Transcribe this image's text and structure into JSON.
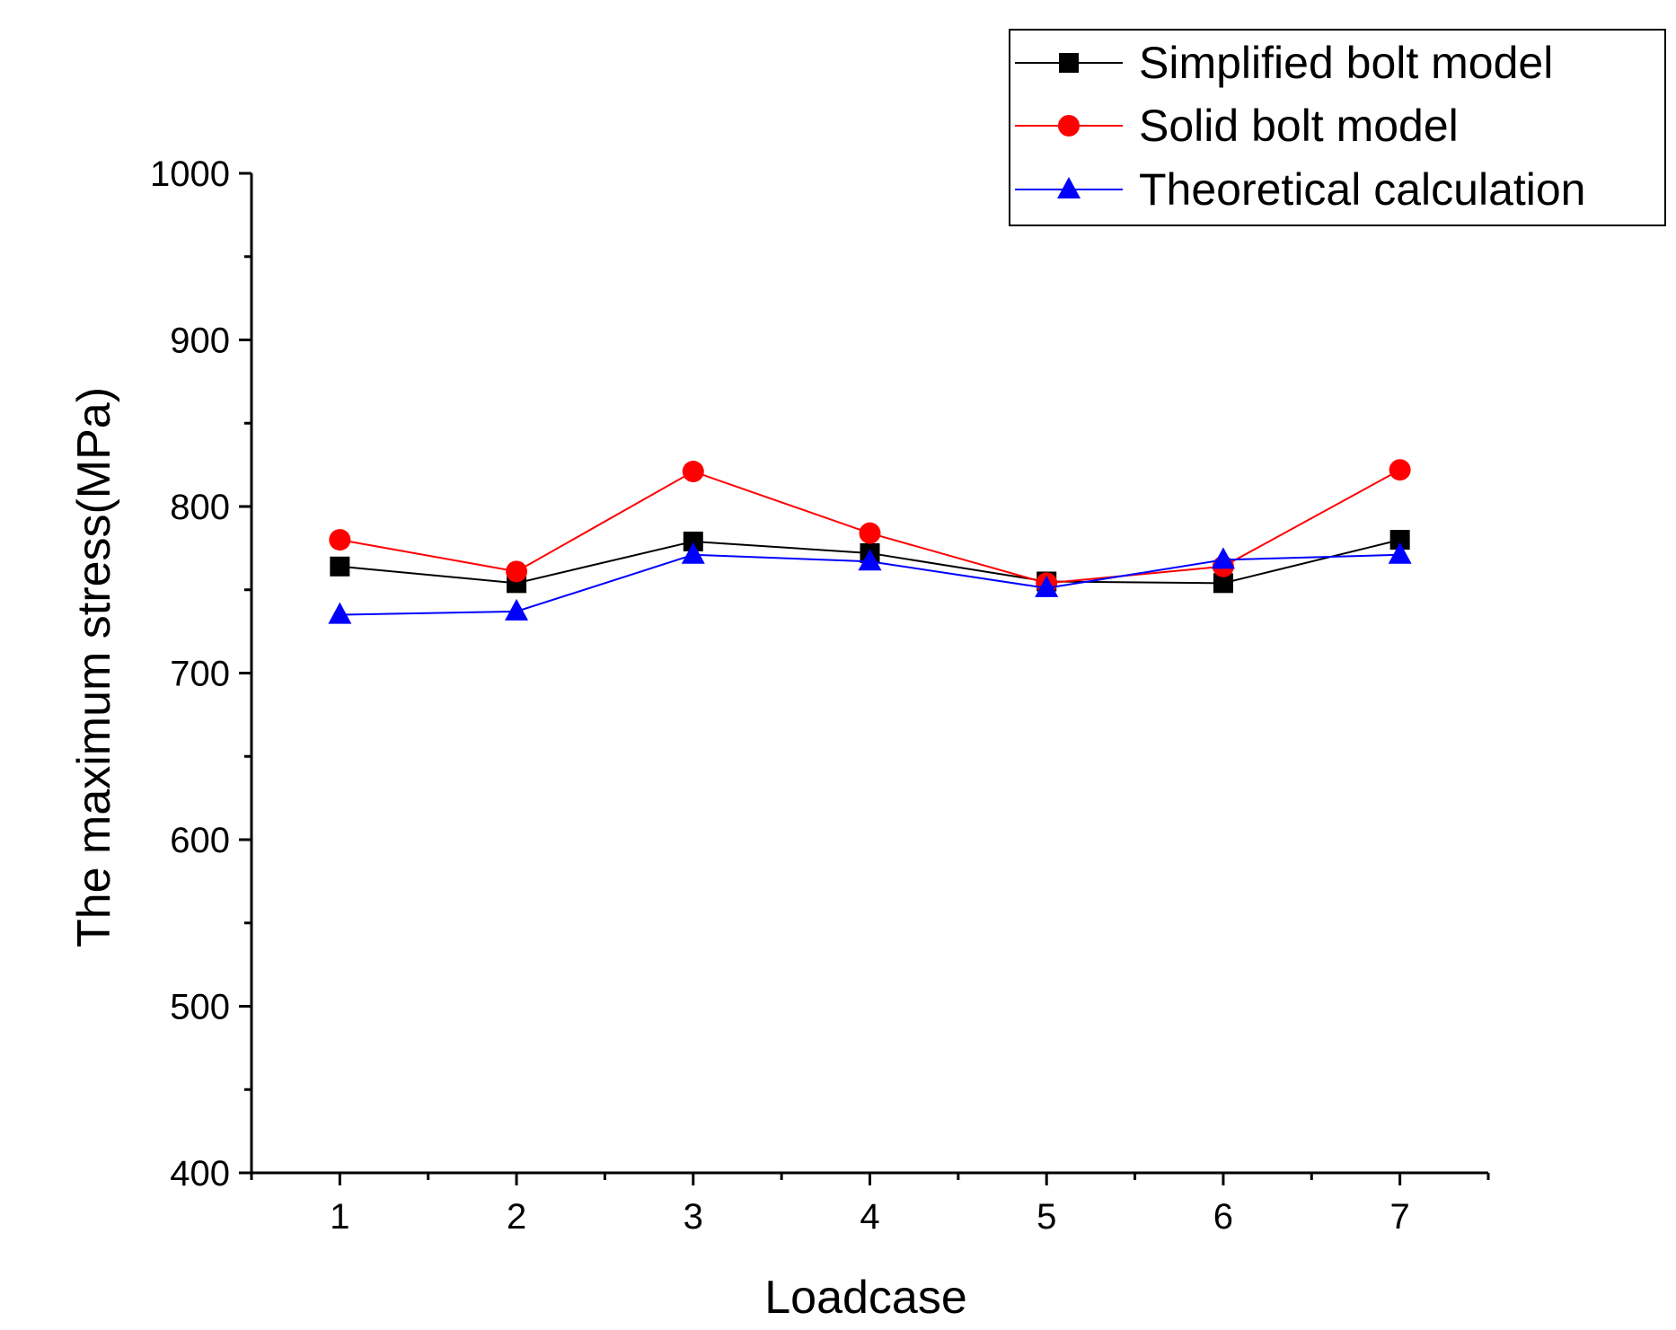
{
  "chart_data": {
    "type": "line",
    "title": "",
    "xlabel": "Loadcase",
    "ylabel": "The maximum stress(MPa)",
    "x": [
      1,
      2,
      3,
      4,
      5,
      6,
      7
    ],
    "xlim": [
      0.5,
      7.5
    ],
    "ylim": [
      400,
      1000
    ],
    "xticks": [
      "1",
      "2",
      "3",
      "4",
      "5",
      "6",
      "7"
    ],
    "yticks": [
      "400",
      "500",
      "600",
      "700",
      "800",
      "900",
      "1000"
    ],
    "grid": false,
    "legend_position": "top-right",
    "series": [
      {
        "name": "Simplified bolt model",
        "color": "#000000",
        "marker": "square",
        "values": [
          764,
          754,
          779,
          772,
          755,
          754,
          780
        ]
      },
      {
        "name": "Solid bolt model",
        "color": "#ff0000",
        "marker": "circle",
        "values": [
          780,
          761,
          821,
          784,
          754,
          764,
          822
        ]
      },
      {
        "name": "Theoretical calculation",
        "color": "#0000ff",
        "marker": "triangle",
        "values": [
          735,
          737,
          771,
          767,
          751,
          768,
          771
        ]
      }
    ]
  }
}
